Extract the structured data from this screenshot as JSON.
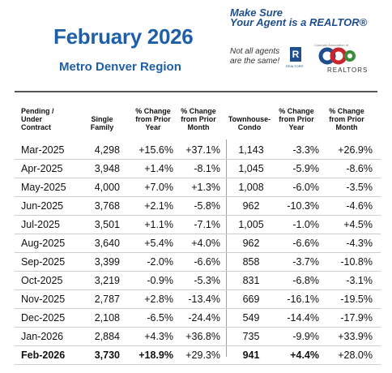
{
  "header": {
    "title": "February 2026",
    "subtitle": "Metro Denver Region"
  },
  "promo": {
    "line1": "Make Sure",
    "line2": "Your Agent is a REALTOR®",
    "note1": "Not all agents",
    "note2": "are the same!",
    "realtor_mark": "R",
    "realtor_caption": "REALTOR®",
    "colorado_caption": "Colorado Association of",
    "colorado_text": "REALTORS"
  },
  "colors": {
    "title": "#1f5fa8",
    "promo": "#1f4e8f",
    "logo_red": "#c8262c",
    "logo_green": "#3a8d3a",
    "logo_blue": "#1f4e8f"
  },
  "table": {
    "headers": {
      "pending": [
        "Pending /",
        "Under",
        "Contract"
      ],
      "single": [
        "Single",
        "Family"
      ],
      "sf_prior_year": [
        "% Change",
        "from Prior",
        "Year"
      ],
      "sf_prior_month": [
        "% Change",
        "from Prior",
        "Month"
      ],
      "townhouse": [
        "Townhouse-",
        "Condo"
      ],
      "th_prior_year": [
        "% Change",
        "from Prior",
        "Year"
      ],
      "th_prior_month": [
        "% Change",
        "from Prior",
        "Month"
      ]
    },
    "rows": [
      {
        "month": "Mar-2025",
        "sf": "4,298",
        "sf_yr": "+15.6%",
        "sf_mo": "+37.1%",
        "th": "1,143",
        "th_yr": "-3.3%",
        "th_mo": "+26.9%"
      },
      {
        "month": "Apr-2025",
        "sf": "3,948",
        "sf_yr": "+1.4%",
        "sf_mo": "-8.1%",
        "th": "1,045",
        "th_yr": "-5.9%",
        "th_mo": "-8.6%"
      },
      {
        "month": "May-2025",
        "sf": "4,000",
        "sf_yr": "+7.0%",
        "sf_mo": "+1.3%",
        "th": "1,008",
        "th_yr": "-6.0%",
        "th_mo": "-3.5%"
      },
      {
        "month": "Jun-2025",
        "sf": "3,768",
        "sf_yr": "+2.1%",
        "sf_mo": "-5.8%",
        "th": "962",
        "th_yr": "-10.3%",
        "th_mo": "-4.6%"
      },
      {
        "month": "Jul-2025",
        "sf": "3,501",
        "sf_yr": "+1.1%",
        "sf_mo": "-7.1%",
        "th": "1,005",
        "th_yr": "-1.0%",
        "th_mo": "+4.5%"
      },
      {
        "month": "Aug-2025",
        "sf": "3,640",
        "sf_yr": "+5.4%",
        "sf_mo": "+4.0%",
        "th": "962",
        "th_yr": "-6.6%",
        "th_mo": "-4.3%"
      },
      {
        "month": "Sep-2025",
        "sf": "3,399",
        "sf_yr": "-2.0%",
        "sf_mo": "-6.6%",
        "th": "858",
        "th_yr": "-3.7%",
        "th_mo": "-10.8%"
      },
      {
        "month": "Oct-2025",
        "sf": "3,219",
        "sf_yr": "-0.9%",
        "sf_mo": "-5.3%",
        "th": "831",
        "th_yr": "-6.8%",
        "th_mo": "-3.1%"
      },
      {
        "month": "Nov-2025",
        "sf": "2,787",
        "sf_yr": "+2.8%",
        "sf_mo": "-13.4%",
        "th": "669",
        "th_yr": "-16.1%",
        "th_mo": "-19.5%"
      },
      {
        "month": "Dec-2025",
        "sf": "2,108",
        "sf_yr": "-6.5%",
        "sf_mo": "-24.4%",
        "th": "549",
        "th_yr": "-14.4%",
        "th_mo": "-17.9%"
      },
      {
        "month": "Jan-2026",
        "sf": "2,884",
        "sf_yr": "+4.3%",
        "sf_mo": "+36.8%",
        "th": "735",
        "th_yr": "-9.9%",
        "th_mo": "+33.9%"
      },
      {
        "month": "Feb-2026",
        "sf": "3,730",
        "sf_yr": "+18.9%",
        "sf_mo": "+29.3%",
        "th": "941",
        "th_yr": "+4.4%",
        "th_mo": "+28.0%"
      }
    ]
  }
}
